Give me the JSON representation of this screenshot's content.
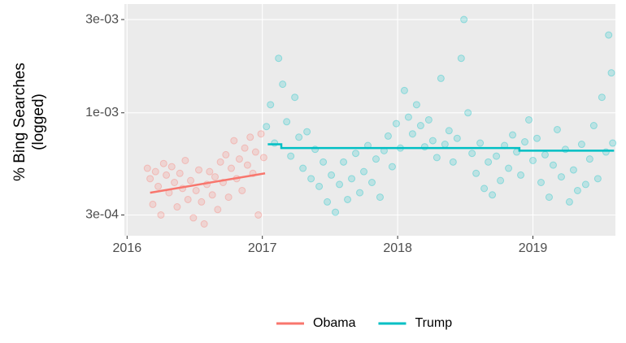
{
  "chart_data": {
    "type": "scatter",
    "y_label": [
      "% Bing Searches",
      "(logged)"
    ],
    "log_y": true,
    "grid": true,
    "legend_position": "bottom",
    "xlim": [
      2015.98,
      2019.61
    ],
    "xticks": [
      2016,
      2017,
      2018,
      2019
    ],
    "ylim": [
      0.000235,
      0.0036
    ],
    "yticks": [
      {
        "value": 0.0003,
        "label": "3e-04"
      },
      {
        "value": 0.001,
        "label": "1e-03"
      },
      {
        "value": 0.003,
        "label": "3e-03"
      }
    ],
    "series": [
      {
        "name": "Obama",
        "color": "#F8766D",
        "x": [
          2016.15,
          2016.17,
          2016.19,
          2016.21,
          2016.23,
          2016.25,
          2016.27,
          2016.29,
          2016.31,
          2016.33,
          2016.35,
          2016.37,
          2016.39,
          2016.41,
          2016.43,
          2016.45,
          2016.47,
          2016.49,
          2016.51,
          2016.53,
          2016.55,
          2016.57,
          2016.59,
          2016.61,
          2016.63,
          2016.65,
          2016.67,
          2016.69,
          2016.71,
          2016.73,
          2016.75,
          2016.77,
          2016.79,
          2016.81,
          2016.83,
          2016.85,
          2016.87,
          2016.89,
          2016.91,
          2016.93,
          2016.95,
          2016.97,
          2016.99,
          2017.01
        ],
        "values": [
          0.00052,
          0.00046,
          0.00034,
          0.0005,
          0.00042,
          0.0003,
          0.00055,
          0.00048,
          0.00039,
          0.00053,
          0.00044,
          0.00033,
          0.00049,
          0.00041,
          0.00057,
          0.00036,
          0.00045,
          0.00029,
          0.0004,
          0.00051,
          0.00035,
          0.00027,
          0.00043,
          0.0005,
          0.00038,
          0.00047,
          0.00032,
          0.00056,
          0.00044,
          0.00061,
          0.00037,
          0.00052,
          0.00072,
          0.00046,
          0.00058,
          0.0004,
          0.00066,
          0.00054,
          0.00075,
          0.00049,
          0.00063,
          0.0003,
          0.00078,
          0.00059
        ],
        "trend": {
          "x": [
            2016.17,
            2017.02
          ],
          "values": [
            0.00039,
            0.00049
          ]
        }
      },
      {
        "name": "Trump",
        "color": "#00BFC4",
        "x": [
          2017.03,
          2017.06,
          2017.09,
          2017.12,
          2017.15,
          2017.18,
          2017.21,
          2017.24,
          2017.27,
          2017.3,
          2017.33,
          2017.36,
          2017.39,
          2017.42,
          2017.45,
          2017.48,
          2017.51,
          2017.54,
          2017.57,
          2017.6,
          2017.63,
          2017.66,
          2017.69,
          2017.72,
          2017.75,
          2017.78,
          2017.81,
          2017.84,
          2017.87,
          2017.9,
          2017.93,
          2017.96,
          2017.99,
          2018.02,
          2018.05,
          2018.08,
          2018.11,
          2018.14,
          2018.17,
          2018.2,
          2018.23,
          2018.26,
          2018.29,
          2018.32,
          2018.35,
          2018.38,
          2018.41,
          2018.44,
          2018.47,
          2018.49,
          2018.52,
          2018.55,
          2018.58,
          2018.61,
          2018.64,
          2018.67,
          2018.7,
          2018.73,
          2018.76,
          2018.79,
          2018.82,
          2018.85,
          2018.88,
          2018.91,
          2018.94,
          2018.97,
          2019.0,
          2019.03,
          2019.06,
          2019.09,
          2019.12,
          2019.15,
          2019.18,
          2019.21,
          2019.24,
          2019.27,
          2019.3,
          2019.33,
          2019.36,
          2019.39,
          2019.42,
          2019.45,
          2019.48,
          2019.51,
          2019.54,
          2019.56,
          2019.58,
          2019.59
        ],
        "values": [
          0.00085,
          0.0011,
          0.0007,
          0.0019,
          0.0014,
          0.0009,
          0.0006,
          0.0012,
          0.00075,
          0.00052,
          0.0008,
          0.00046,
          0.00065,
          0.00042,
          0.00056,
          0.00035,
          0.00048,
          0.00031,
          0.00043,
          0.00056,
          0.00036,
          0.00046,
          0.00062,
          0.00039,
          0.0005,
          0.00068,
          0.00044,
          0.00058,
          0.00037,
          0.00064,
          0.00076,
          0.00053,
          0.00088,
          0.00066,
          0.0013,
          0.00095,
          0.00078,
          0.0011,
          0.00086,
          0.00067,
          0.00092,
          0.00072,
          0.00059,
          0.0015,
          0.00069,
          0.00081,
          0.00056,
          0.00074,
          0.0019,
          0.003,
          0.001,
          0.00062,
          0.00049,
          0.0007,
          0.00041,
          0.00056,
          0.00038,
          0.0006,
          0.00045,
          0.00068,
          0.00052,
          0.00077,
          0.00063,
          0.00048,
          0.00071,
          0.00092,
          0.00057,
          0.00074,
          0.00044,
          0.00061,
          0.00037,
          0.00054,
          0.00082,
          0.00047,
          0.00065,
          0.00035,
          0.00051,
          0.0004,
          0.00069,
          0.00043,
          0.00058,
          0.00086,
          0.00046,
          0.0012,
          0.00063,
          0.0025,
          0.0016,
          0.0007
        ],
        "trend": {
          "x": [
            2017.04,
            2017.14,
            2017.14,
            2018.9,
            2018.9,
            2019.6
          ],
          "values": [
            0.00069,
            0.00069,
            0.00066,
            0.00066,
            0.00064,
            0.00064
          ]
        }
      }
    ]
  }
}
